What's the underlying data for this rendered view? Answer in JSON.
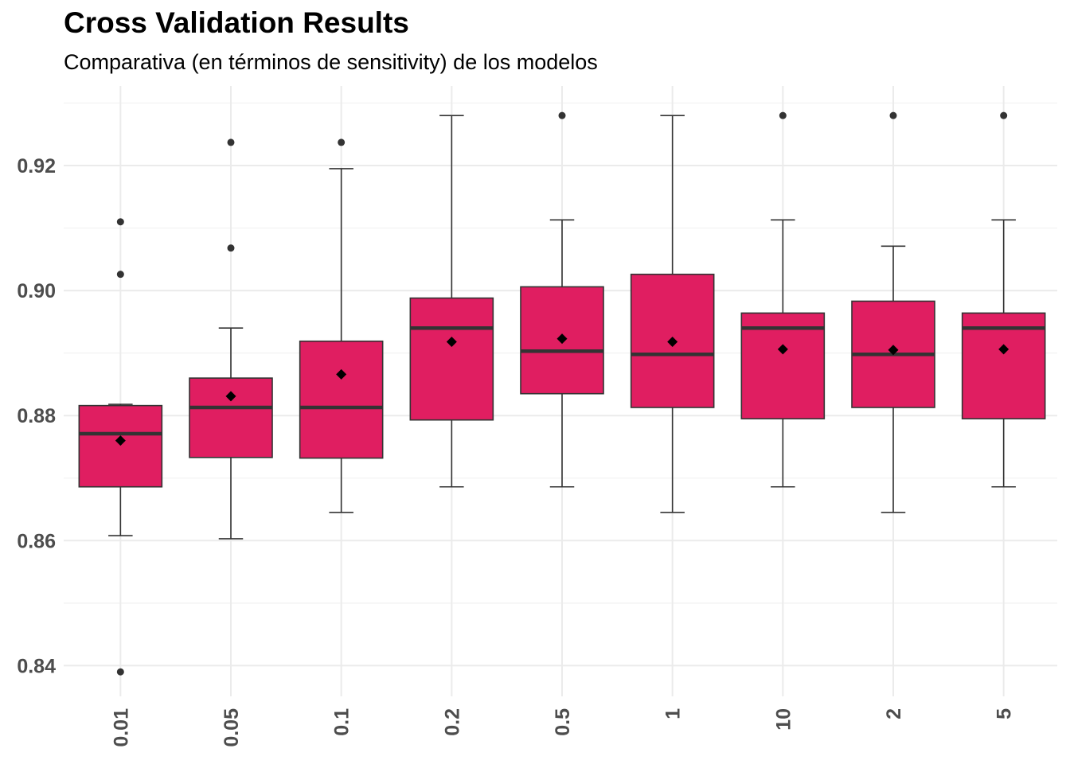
{
  "chart_data": {
    "type": "box",
    "title": "Cross Validation Results",
    "subtitle": "Comparativa (en términos de sensitivity) de los modelos",
    "xlabel": "",
    "ylabel": "",
    "ylim": [
      0.835,
      0.93
    ],
    "yticks": [
      "0.84",
      "0.86",
      "0.88",
      "0.90",
      "0.92"
    ],
    "grid": true,
    "fill_color": "#e01e61",
    "categories": [
      "0.01",
      "0.05",
      "0.1",
      "0.2",
      "0.5",
      "1",
      "10",
      "2",
      "5"
    ],
    "boxes": [
      {
        "category": "0.01",
        "lower_whisker": 0.8608,
        "q1": 0.8686,
        "median": 0.8771,
        "q3": 0.8816,
        "upper_whisker": 0.8818,
        "mean": 0.876,
        "outliers": [
          0.911,
          0.9026,
          0.839
        ]
      },
      {
        "category": "0.05",
        "lower_whisker": 0.8603,
        "q1": 0.8733,
        "median": 0.8813,
        "q3": 0.886,
        "upper_whisker": 0.894,
        "mean": 0.8831,
        "outliers": [
          0.9237,
          0.9068
        ]
      },
      {
        "category": "0.1",
        "lower_whisker": 0.8645,
        "q1": 0.8732,
        "median": 0.8813,
        "q3": 0.8919,
        "upper_whisker": 0.9195,
        "mean": 0.8866,
        "outliers": [
          0.9237
        ]
      },
      {
        "category": "0.2",
        "lower_whisker": 0.8686,
        "q1": 0.8793,
        "median": 0.894,
        "q3": 0.8988,
        "upper_whisker": 0.928,
        "mean": 0.8918,
        "outliers": []
      },
      {
        "category": "0.5",
        "lower_whisker": 0.8686,
        "q1": 0.8835,
        "median": 0.8903,
        "q3": 0.9006,
        "upper_whisker": 0.9113,
        "mean": 0.8923,
        "outliers": [
          0.928
        ]
      },
      {
        "category": "1",
        "lower_whisker": 0.8645,
        "q1": 0.8813,
        "median": 0.8898,
        "q3": 0.9026,
        "upper_whisker": 0.928,
        "mean": 0.8918,
        "outliers": []
      },
      {
        "category": "10",
        "lower_whisker": 0.8686,
        "q1": 0.8795,
        "median": 0.894,
        "q3": 0.8964,
        "upper_whisker": 0.9113,
        "mean": 0.8906,
        "outliers": [
          0.928
        ]
      },
      {
        "category": "2",
        "lower_whisker": 0.8645,
        "q1": 0.8813,
        "median": 0.8898,
        "q3": 0.8983,
        "upper_whisker": 0.9071,
        "mean": 0.8905,
        "outliers": [
          0.928
        ]
      },
      {
        "category": "5",
        "lower_whisker": 0.8686,
        "q1": 0.8795,
        "median": 0.894,
        "q3": 0.8964,
        "upper_whisker": 0.9113,
        "mean": 0.8906,
        "outliers": [
          0.928
        ]
      }
    ]
  }
}
